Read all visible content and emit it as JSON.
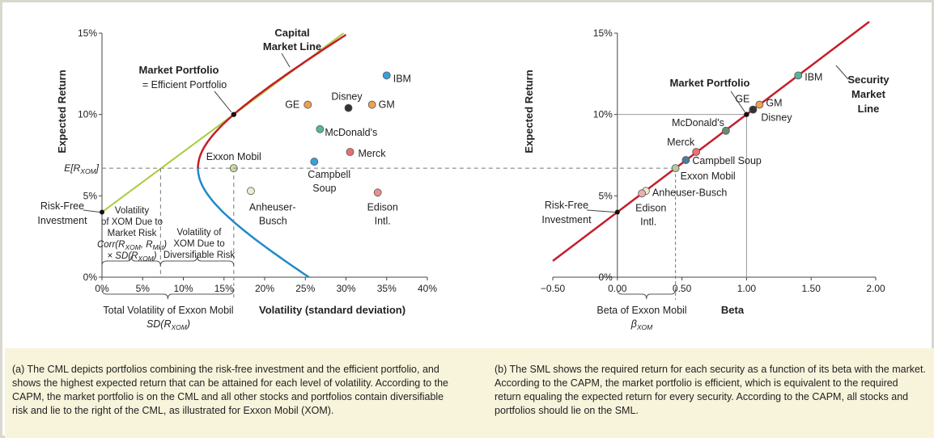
{
  "chart_data": [
    {
      "type": "scatter",
      "panel": "a",
      "xlabel": "Volatility (standard deviation)",
      "ylabel": "Expected Return",
      "xlim": [
        0,
        40
      ],
      "ylim": [
        0,
        15
      ],
      "x_ticks": [
        "0%",
        "5%",
        "10%",
        "15%",
        "20%",
        "25%",
        "30%",
        "35%",
        "40%"
      ],
      "y_ticks": [
        "0%",
        "5%",
        "10%",
        "15%"
      ],
      "y_extra_tick_label": "E[R",
      "y_extra_tick_sub": "XOM",
      "y_extra_tick_value": 6.7,
      "risk_free": {
        "label_1": "Risk-Free",
        "label_2": "Investment",
        "x": 0,
        "y": 4
      },
      "market_portfolio": {
        "label_1": "Market Portfolio",
        "label_2": "= Efficient Portfolio",
        "x": 16.2,
        "y": 10
      },
      "cml": {
        "label_1": "Capital",
        "label_2": "Market Line",
        "color": "#c41e2a"
      },
      "tangent_line_color": "#a8cc3c",
      "frontier_lower_color": "#1f8ac9",
      "points": [
        {
          "name": "GE",
          "x": 25.3,
          "y": 10.6,
          "color": "#f0a050"
        },
        {
          "name": "Disney",
          "x": 30.3,
          "y": 10.4,
          "color": "#333333"
        },
        {
          "name": "GM",
          "x": 33.2,
          "y": 10.6,
          "color": "#f0a050"
        },
        {
          "name": "IBM",
          "x": 35,
          "y": 12.4,
          "color": "#3aa0dc"
        },
        {
          "name": "McDonald's",
          "x": 26.8,
          "y": 9.1,
          "color": "#5ab894"
        },
        {
          "name": "Merck",
          "x": 30.5,
          "y": 7.7,
          "color": "#e87070"
        },
        {
          "name": "Exxon Mobil",
          "x": 16.2,
          "y": 6.7,
          "color": "#c8dca0"
        },
        {
          "name_1": "Campbell",
          "name_2": "Soup",
          "x": 26.1,
          "y": 7.1,
          "color": "#3aa0dc"
        },
        {
          "name_1": "Anheuser-",
          "name_2": "Busch",
          "x": 18.3,
          "y": 5.3,
          "color": "#f0ead0"
        },
        {
          "name_1": "Edison",
          "name_2": "Intl.",
          "x": 33.9,
          "y": 5.2,
          "color": "#e89090"
        }
      ],
      "annotations": {
        "market_risk": [
          "Volatility",
          "of XOM Due to",
          "Market Risk",
          "Corr(R",
          "XOM",
          ", R",
          "Mkt",
          ")",
          "× SD(R",
          "XOM",
          ")"
        ],
        "diversifiable_risk": [
          "Volatility of",
          "XOM Due to",
          "Diversifiable Risk"
        ],
        "total_1": "Total Volatility of Exxon Mobil",
        "total_2": "SD(R",
        "total_2_sub": "XOM",
        "market_risk_x": 7.2
      }
    },
    {
      "type": "line",
      "panel": "b",
      "xlabel": "Beta",
      "ylabel": "Expected Return",
      "xlim": [
        -0.5,
        2.0
      ],
      "ylim": [
        0,
        15
      ],
      "x_ticks": [
        "−0.50",
        "0.00",
        "0.50",
        "1.00",
        "1.50",
        "2.00"
      ],
      "y_ticks": [
        "0%",
        "5%",
        "10%",
        "15%"
      ],
      "sml": {
        "label_1": "Security",
        "label_2": "Market",
        "label_3": "Line",
        "color": "#c41e2a",
        "rf": 4,
        "rm": 10
      },
      "risk_free": {
        "label_1": "Risk-Free",
        "label_2": "Investment",
        "x": 0,
        "y": 4
      },
      "market_portfolio": {
        "label": "Market Portfolio",
        "x": 1.0,
        "y": 10
      },
      "points": [
        {
          "name": "IBM",
          "x": 1.4,
          "y": 12.4,
          "color": "#5ab0a0"
        },
        {
          "name": "GE",
          "x": 1.05,
          "y": 10.3,
          "color": "#333333"
        },
        {
          "name": "GM",
          "x": 1.1,
          "y": 10.6,
          "color": "#f0a050"
        },
        {
          "name": "Disney",
          "x": 1.05,
          "y": 10.3,
          "color": "#333333"
        },
        {
          "name": "McDonald's",
          "x": 0.84,
          "y": 9.0,
          "color": "#6a8c70"
        },
        {
          "name": "Merck",
          "x": 0.61,
          "y": 7.7,
          "color": "#e87070"
        },
        {
          "name": "Campbell Soup",
          "x": 0.53,
          "y": 7.2,
          "color": "#4a7ca0"
        },
        {
          "name": "Exxon Mobil",
          "x": 0.45,
          "y": 6.7,
          "color": "#b8c8a0"
        },
        {
          "name": "Anheuser-Busch",
          "x": 0.22,
          "y": 5.3,
          "color": "#f0ead0"
        },
        {
          "name_1": "Edison",
          "name_2": "Intl.",
          "x": 0.19,
          "y": 5.15,
          "color": "#e8b0b0"
        }
      ],
      "beta_label_1": "Beta of Exxon Mobil",
      "beta_label_2": "β",
      "beta_label_2_sub": "XOM",
      "beta_xom": 0.45
    }
  ],
  "captions": {
    "a": "(a) The CML depicts portfolios combining the risk-free investment and the efficient portfolio, and shows the highest expected return that can be attained for each level of volatility. According to the CAPM, the market portfolio is on the CML and all other stocks and portfolios contain diversifiable risk and lie to the right of the CML, as illustrated for Exxon Mobil (XOM).",
    "b": "(b) The SML shows the required return for each security as a function of its beta with the market. According to the CAPM, the market portfolio is efficient, which is equivalent to the required return equaling the expected return for every security. According to the CAPM, all stocks and portfolios should lie on the SML."
  }
}
